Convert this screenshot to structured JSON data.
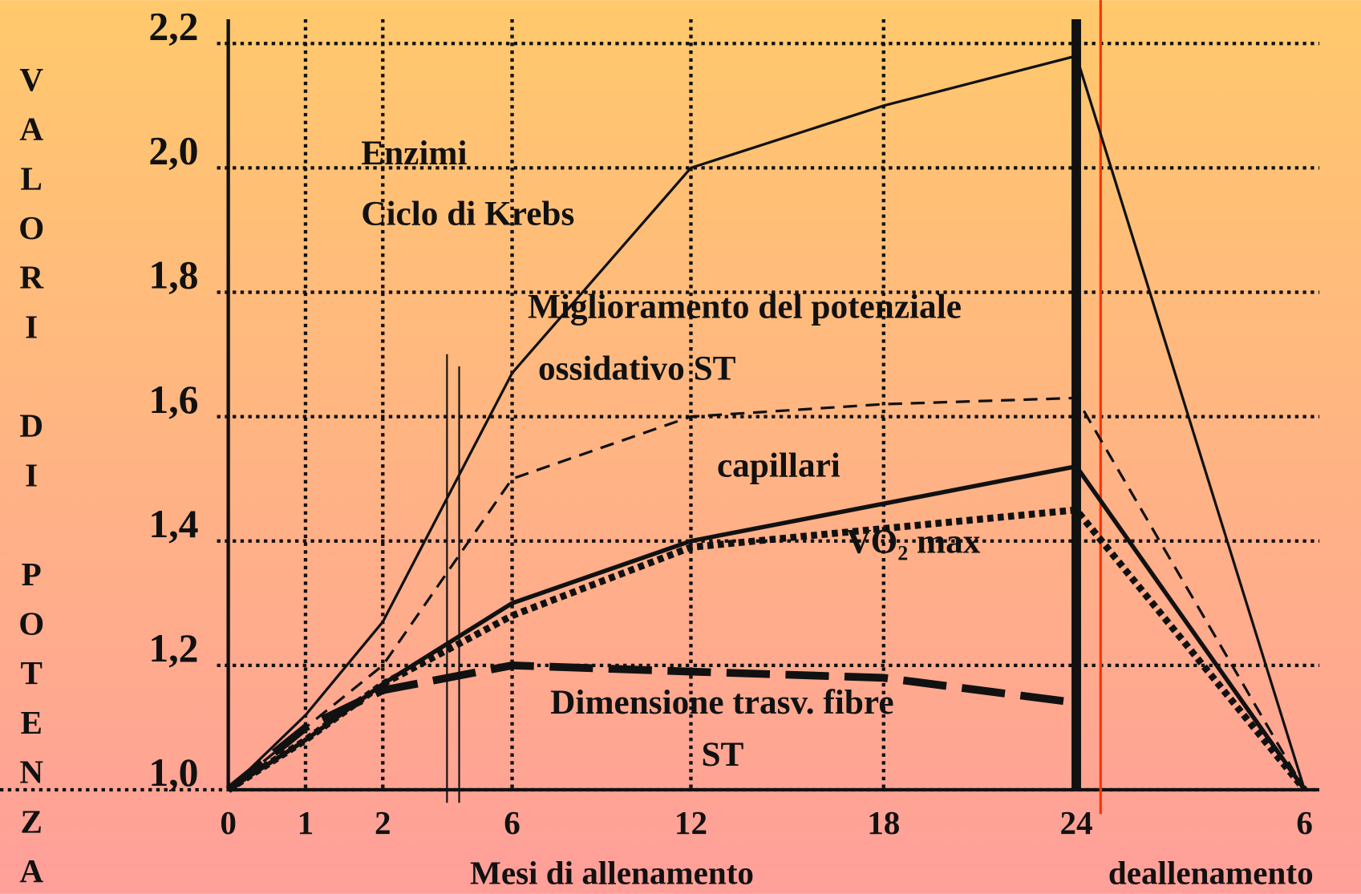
{
  "chart_data": {
    "type": "line",
    "y_label": "VALORI DI POTENZA",
    "x_label": "Mesi  di allenamento",
    "x_label_right": "deallenamento",
    "categories": [
      "0",
      "1",
      "2",
      "6",
      "12",
      "18",
      "24",
      "6"
    ],
    "ylim": [
      1.0,
      2.2
    ],
    "yticks": [
      {
        "value": 1.0,
        "label": "1,0"
      },
      {
        "value": 1.2,
        "label": "1,2"
      },
      {
        "value": 1.4,
        "label": "1,4"
      },
      {
        "value": 1.6,
        "label": "1,6"
      },
      {
        "value": 1.8,
        "label": "1,8"
      },
      {
        "value": 2.0,
        "label": "2,0"
      },
      {
        "value": 2.2,
        "label": "2,2"
      }
    ],
    "grid": true,
    "series": [
      {
        "style": "solid",
        "color": "#111111",
        "values": [
          1.0,
          1.12,
          1.27,
          1.67,
          2.0,
          2.1,
          2.18,
          1.0
        ]
      },
      {
        "style": "dashed",
        "color": "#111111",
        "values": [
          1.0,
          1.1,
          1.2,
          1.5,
          1.6,
          1.62,
          1.63,
          1.0
        ]
      },
      {
        "style": "bold",
        "color": "#111111",
        "values": [
          1.0,
          1.08,
          1.17,
          1.3,
          1.4,
          1.46,
          1.52,
          1.0
        ]
      },
      {
        "style": "dotted",
        "color": "#111111",
        "values": [
          1.0,
          1.08,
          1.17,
          1.28,
          1.39,
          1.42,
          1.45,
          1.0
        ]
      },
      {
        "style": "longdash",
        "color": "#111111",
        "values": [
          1.0,
          1.1,
          1.16,
          1.2,
          1.19,
          1.18,
          1.14,
          null
        ]
      }
    ],
    "annotations": [
      "Enzimi",
      "Ciclo di Krebs",
      "Miglioramento del potenziale",
      "ossidativo ST",
      "capillari",
      "VO₂ max",
      "Dimensione trasv. fibre",
      "ST"
    ]
  }
}
